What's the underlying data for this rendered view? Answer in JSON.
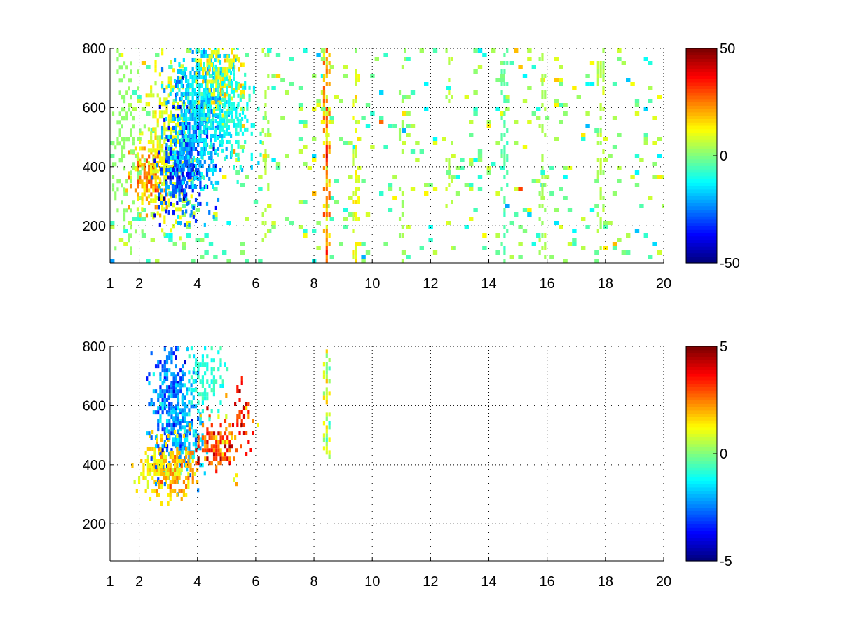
{
  "chart_data": [
    {
      "type": "heatmap",
      "title": "",
      "xlabel": "",
      "ylabel": "",
      "xlim": [
        1,
        20
      ],
      "ylim": [
        75,
        800
      ],
      "x_ticks": [
        1,
        2,
        4,
        6,
        8,
        10,
        12,
        14,
        16,
        18,
        20
      ],
      "y_ticks": [
        200,
        400,
        600,
        800
      ],
      "grid": true,
      "colormap": "jet",
      "clim": [
        -50,
        50
      ],
      "colorbar_ticks": [
        -50,
        0,
        50
      ],
      "blobs": [
        {
          "cx": 2.3,
          "cy": 360,
          "sx": 0.35,
          "sy": 60,
          "v": 25,
          "density": 0.9
        },
        {
          "cx": 2.9,
          "cy": 480,
          "sx": 0.45,
          "sy": 150,
          "v": 12,
          "density": 0.75
        },
        {
          "cx": 3.3,
          "cy": 360,
          "sx": 0.4,
          "sy": 60,
          "v": -38,
          "density": 0.85
        },
        {
          "cx": 3.7,
          "cy": 460,
          "sx": 0.5,
          "sy": 120,
          "v": -30,
          "density": 0.8
        },
        {
          "cx": 4.2,
          "cy": 620,
          "sx": 0.6,
          "sy": 140,
          "v": -18,
          "density": 0.8
        },
        {
          "cx": 4.8,
          "cy": 700,
          "sx": 0.4,
          "sy": 80,
          "v": 15,
          "density": 0.7
        },
        {
          "cx": 5.2,
          "cy": 560,
          "sx": 0.45,
          "sy": 90,
          "v": -12,
          "density": 0.65
        },
        {
          "cx": 1.5,
          "cy": 450,
          "sx": 0.3,
          "sy": 300,
          "v": 2,
          "density": 0.3
        }
      ],
      "stripes": [
        {
          "x": 6.3,
          "v": 5,
          "density": 0.35
        },
        {
          "x": 8.4,
          "v": 22,
          "density": 0.85
        },
        {
          "x": 9.4,
          "v": 10,
          "density": 0.5
        },
        {
          "x": 11.0,
          "v": 3,
          "density": 0.25
        },
        {
          "x": 12.6,
          "v": 6,
          "density": 0.3
        },
        {
          "x": 14.5,
          "v": -4,
          "density": 0.45
        },
        {
          "x": 15.8,
          "v": 4,
          "density": 0.45
        },
        {
          "x": 17.8,
          "v": 5,
          "density": 0.45
        }
      ],
      "background": {
        "v": 0,
        "spread": 8,
        "density": 0.08
      }
    },
    {
      "type": "heatmap",
      "title": "",
      "xlabel": "",
      "ylabel": "",
      "xlim": [
        1,
        20
      ],
      "ylim": [
        75,
        800
      ],
      "x_ticks": [
        1,
        2,
        4,
        6,
        8,
        10,
        12,
        14,
        16,
        18,
        20
      ],
      "y_ticks": [
        200,
        400,
        600,
        800
      ],
      "grid": true,
      "colormap": "jet",
      "clim": [
        -5,
        5
      ],
      "colorbar_ticks": [
        -5,
        0,
        5
      ],
      "blobs": [
        {
          "cx": 2.5,
          "cy": 380,
          "sx": 0.35,
          "sy": 60,
          "v": 1.8,
          "density": 0.8
        },
        {
          "cx": 3.0,
          "cy": 600,
          "sx": 0.35,
          "sy": 130,
          "v": -3.0,
          "density": 0.75
        },
        {
          "cx": 3.6,
          "cy": 520,
          "sx": 0.35,
          "sy": 110,
          "v": -2.2,
          "density": 0.7
        },
        {
          "cx": 3.3,
          "cy": 380,
          "sx": 0.4,
          "sy": 60,
          "v": 2.2,
          "density": 0.8
        },
        {
          "cx": 4.6,
          "cy": 460,
          "sx": 0.45,
          "sy": 60,
          "v": 3.5,
          "density": 0.75
        },
        {
          "cx": 4.3,
          "cy": 700,
          "sx": 0.35,
          "sy": 70,
          "v": -1.0,
          "density": 0.55
        },
        {
          "cx": 5.5,
          "cy": 560,
          "sx": 0.25,
          "sy": 60,
          "v": 3.8,
          "density": 0.4
        }
      ],
      "stripes": [
        {
          "x": 8.4,
          "ymin": 420,
          "ymax": 780,
          "v": 0.5,
          "density": 0.75
        }
      ],
      "background": {
        "v": 0,
        "spread": 0,
        "density": 0
      }
    }
  ]
}
